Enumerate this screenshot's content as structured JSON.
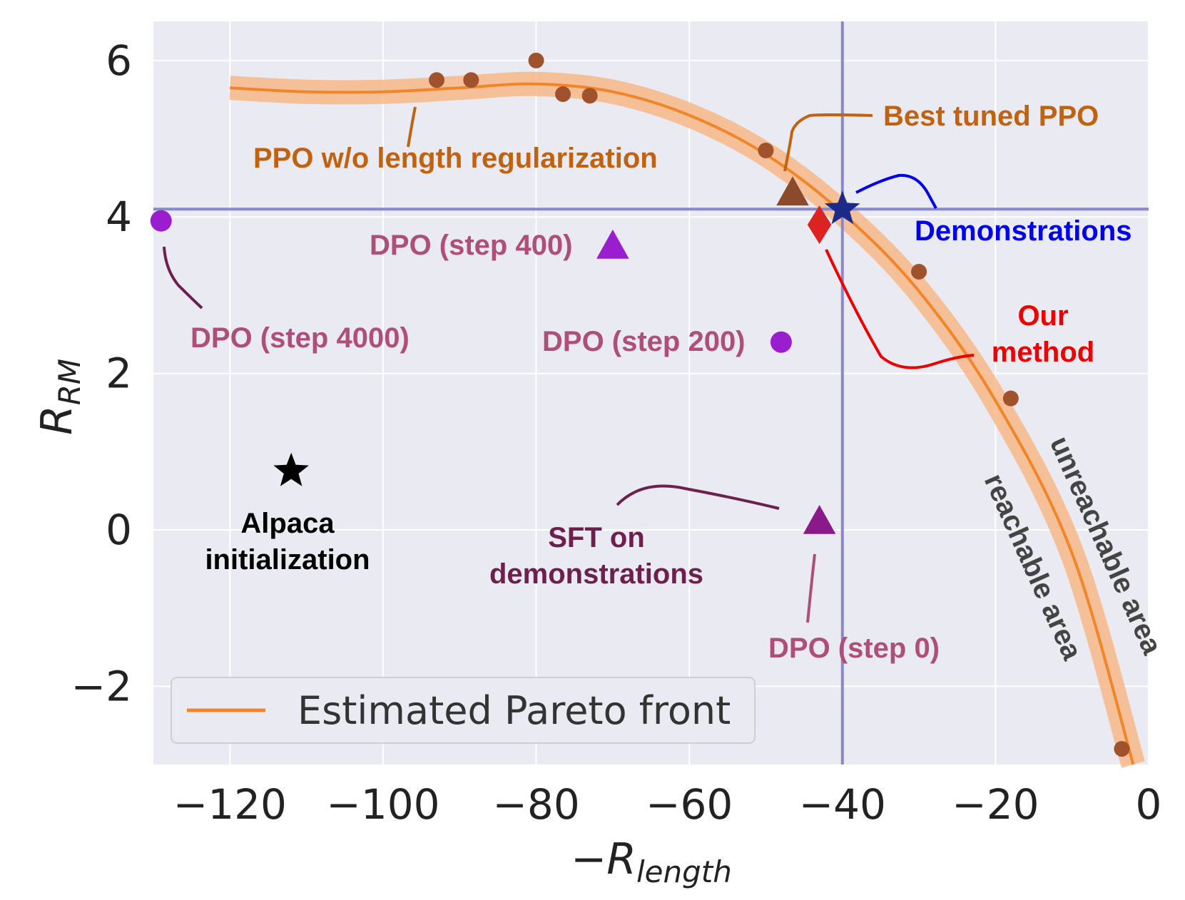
{
  "chart_data": {
    "type": "scatter",
    "xlabel": {
      "main": "−R",
      "sub": "length"
    },
    "ylabel": {
      "main": "R",
      "sub": "RM"
    },
    "xlim": [
      -130,
      0
    ],
    "ylim": [
      -3,
      6.5
    ],
    "x_ticks": [
      -120,
      -100,
      -80,
      -60,
      -40,
      -20,
      0
    ],
    "y_ticks": [
      -2,
      0,
      2,
      4,
      6
    ],
    "x_tick_labels": [
      "−120",
      "−100",
      "−80",
      "−60",
      "−40",
      "−20",
      "0"
    ],
    "y_tick_labels": [
      "−2",
      "0",
      "2",
      "4",
      "6"
    ],
    "grid": true,
    "legend": {
      "position": "bottom-left",
      "entries": [
        "Estimated Pareto front"
      ]
    },
    "reference_lines": {
      "x": -40,
      "y": 4.1
    },
    "pareto_front": [
      [
        -120,
        5.65
      ],
      [
        -110,
        5.6
      ],
      [
        -100,
        5.6
      ],
      [
        -90,
        5.65
      ],
      [
        -80,
        5.7
      ],
      [
        -70,
        5.6
      ],
      [
        -60,
        5.3
      ],
      [
        -50,
        4.8
      ],
      [
        -40,
        4.05
      ],
      [
        -30,
        3.05
      ],
      [
        -20,
        1.65
      ],
      [
        -10,
        -0.3
      ],
      [
        -2,
        -3.0
      ]
    ],
    "ppo_points": [
      [
        -93,
        5.75
      ],
      [
        -88.5,
        5.75
      ],
      [
        -80,
        6.0
      ],
      [
        -76.5,
        5.57
      ],
      [
        -73,
        5.55
      ],
      [
        -50,
        4.85
      ],
      [
        -30,
        3.3
      ],
      [
        -18,
        1.68
      ],
      [
        -3.5,
        -2.8
      ]
    ],
    "markers": {
      "best_tuned_ppo": {
        "x": -46.5,
        "y": 4.3,
        "shape": "triangle",
        "color": "#8b4a2b"
      },
      "demonstrations": {
        "x": -40,
        "y": 4.1,
        "shape": "star",
        "color": "#1c2a8a"
      },
      "our_method": {
        "x": -43,
        "y": 3.9,
        "shape": "diamond",
        "color": "#dd2222"
      },
      "dpo_step_400": {
        "x": -70,
        "y": 3.62,
        "shape": "triangle",
        "color": "#9a1dd0"
      },
      "dpo_step_4000": {
        "x": -129,
        "y": 3.95,
        "shape": "circle",
        "color": "#9a1dd0"
      },
      "dpo_step_200": {
        "x": -48,
        "y": 2.4,
        "shape": "circle",
        "color": "#9a1dd0"
      },
      "alpaca_init": {
        "x": -112,
        "y": 0.75,
        "shape": "star",
        "color": "#000000"
      },
      "sft_dpo_step_0": {
        "x": -43,
        "y": 0.1,
        "shape": "triangle",
        "color": "#8a1a8a"
      }
    },
    "annotations": {
      "ppo_no_len": "PPO w/o length regularization",
      "best_ppo": "Best tuned PPO",
      "demonstrations": "Demonstrations",
      "our_method_1": "Our",
      "our_method_2": "method",
      "dpo_400": "DPO (step 400)",
      "dpo_4000": "DPO (step 4000)",
      "dpo_200": "DPO (step 200)",
      "dpo_0": "DPO (step 0)",
      "alpaca_1": "Alpaca",
      "alpaca_2": "initialization",
      "sft_1": "SFT on",
      "sft_2": "demonstrations",
      "unreachable": "unreachable area",
      "reachable": "reachable area"
    },
    "colors": {
      "background": "#eaeaf2",
      "grid": "#ffffff",
      "front": "#f28527",
      "front_band": "#f7b888",
      "ppo": "#a0522d",
      "ref_line": "#8888cc",
      "ann_orange": "#c0620f",
      "ann_pink": "#b04e7a",
      "ann_plum": "#6e1f4e",
      "ann_blue": "#0000ee",
      "ann_red": "#ee0000",
      "ann_gray": "#444444"
    }
  }
}
